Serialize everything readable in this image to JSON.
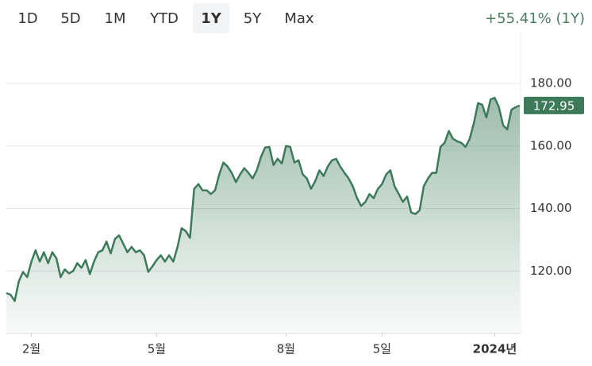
{
  "ranges": [
    "1D",
    "5D",
    "1M",
    "YTD",
    "1Y",
    "5Y",
    "Max"
  ],
  "selected_range": "1Y",
  "change_label": "+55.41% (1Y)",
  "chart_data": {
    "type": "area",
    "color": "#3d7a5a",
    "values": [
      112.9,
      112.4,
      110.4,
      116.7,
      119.7,
      118,
      123,
      126.6,
      123,
      126,
      122.5,
      126,
      124,
      118,
      120.5,
      119.2,
      120,
      122.5,
      121,
      123.5,
      119,
      123,
      126,
      126.6,
      129.4,
      125.6,
      130.2,
      131.4,
      128.7,
      126,
      127.7,
      126,
      126.6,
      125,
      119.7,
      121.5,
      123.5,
      125,
      123,
      125,
      123,
      127.7,
      133.7,
      132.7,
      130.6,
      146.3,
      147.8,
      145.8,
      145.8,
      144.6,
      145.8,
      150.9,
      154.7,
      153.4,
      151.4,
      148.4,
      150.9,
      152.9,
      151.4,
      149.6,
      152.2,
      156.5,
      159.5,
      159.7,
      153.9,
      155.9,
      154.4,
      160,
      159.7,
      154.7,
      155.4,
      150.9,
      149.6,
      146.3,
      148.8,
      152.2,
      150.4,
      153.4,
      155.4,
      155.9,
      153.4,
      151.4,
      149.6,
      147.1,
      143.3,
      140.8,
      142.1,
      144.6,
      143.3,
      146.3,
      147.8,
      150.9,
      152.2,
      147.1,
      144.6,
      142.1,
      143.8,
      138.7,
      138.2,
      139.4,
      147.1,
      149.6,
      151.4,
      151.4,
      159.7,
      161,
      164.8,
      162.3,
      161.5,
      161,
      159.7,
      162.3,
      167.3,
      173.7,
      173.2,
      169.1,
      174.9,
      175.4,
      172.4,
      166.6,
      165.3,
      171.6,
      172.4,
      172.95
    ],
    "xlim": [
      0,
      123
    ],
    "xticks": [
      {
        "value": 6,
        "label": "2월"
      },
      {
        "value": 36,
        "label": "5월"
      },
      {
        "value": 67,
        "label": "8월"
      },
      {
        "value": 90,
        "label": "5일"
      },
      {
        "value": 117,
        "label": "2024년"
      }
    ],
    "ylim": [
      100,
      194
    ],
    "yticks": [
      {
        "value": 120,
        "label": "120.00"
      },
      {
        "value": 140,
        "label": "140.00"
      },
      {
        "value": 160,
        "label": "160.00"
      },
      {
        "value": 180,
        "label": "180.00"
      }
    ],
    "grid": true
  }
}
